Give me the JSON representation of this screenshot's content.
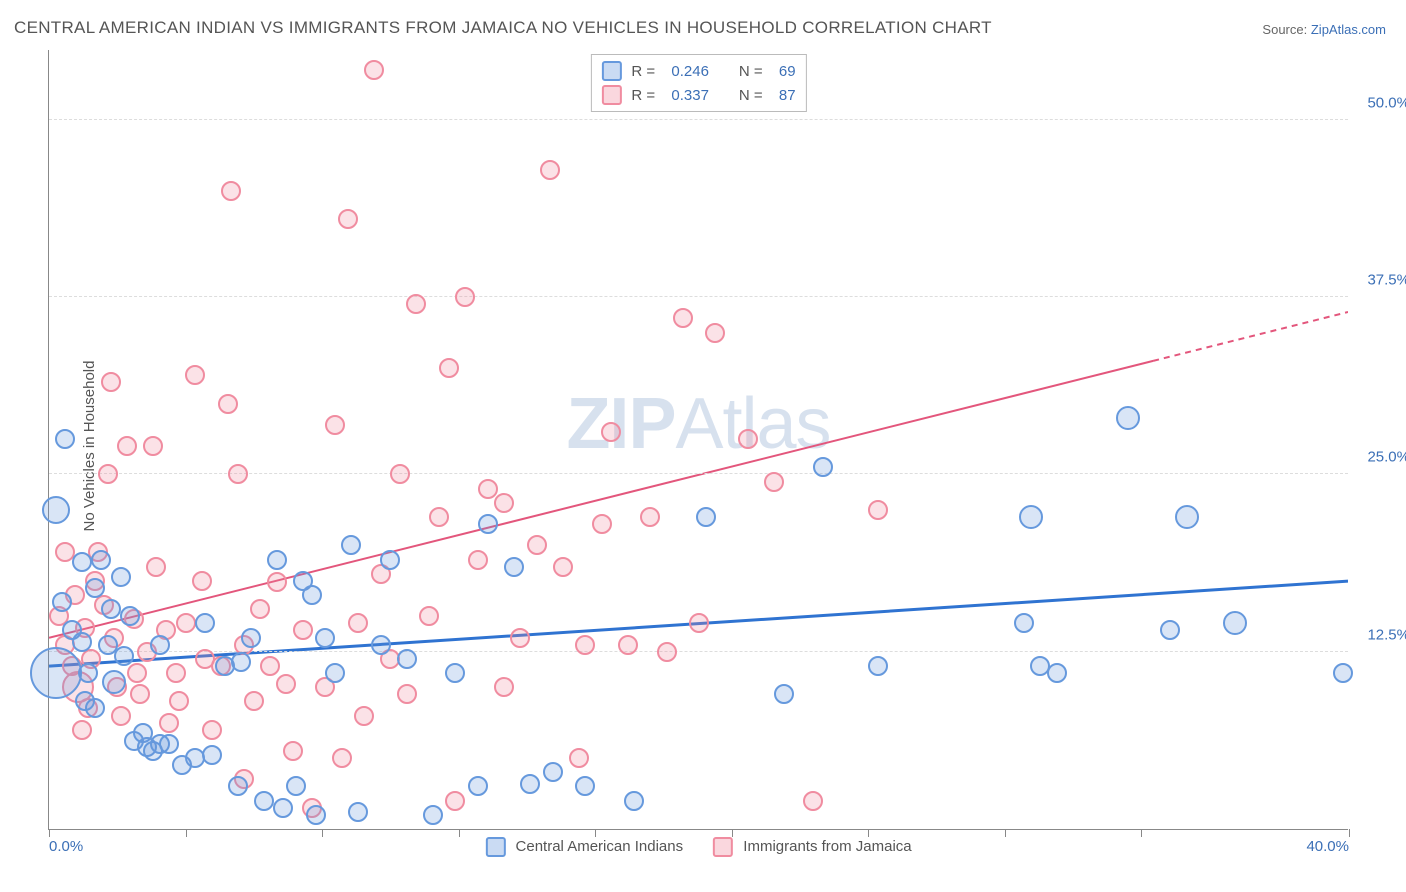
{
  "title": "CENTRAL AMERICAN INDIAN VS IMMIGRANTS FROM JAMAICA NO VEHICLES IN HOUSEHOLD CORRELATION CHART",
  "source_label": "Source:",
  "source_name": "ZipAtlas.com",
  "ylabel": "No Vehicles in Household",
  "watermark_a": "ZIP",
  "watermark_b": "Atlas",
  "chart": {
    "type": "scatter",
    "background_color": "#ffffff",
    "grid_color": "#dddddd",
    "axis_color": "#888888",
    "tick_label_color": "#3b6fb6",
    "label_color": "#555555",
    "title_fontsize": 17,
    "label_fontsize": 15,
    "xlim": [
      0,
      40
    ],
    "ylim": [
      0,
      55
    ],
    "xticks": [
      0,
      4.2,
      8.4,
      12.6,
      16.8,
      21.0,
      25.2,
      29.4,
      33.6,
      40
    ],
    "xtick_labels": {
      "0": "0.0%",
      "40": "40.0%"
    },
    "yticks": [
      12.5,
      25.0,
      37.5,
      50.0
    ],
    "ytick_labels": [
      "12.5%",
      "25.0%",
      "37.5%",
      "50.0%"
    ],
    "series": [
      {
        "name": "Central American Indians",
        "short": "blue",
        "color_fill": "rgba(102,153,221,0.25)",
        "color_stroke": "#6699dd",
        "R": "0.246",
        "N": "69",
        "trend": {
          "x1": 0,
          "y1": 11.5,
          "x2": 40,
          "y2": 17.5,
          "dash_from_x": 40,
          "stroke": "#2f73d1",
          "width": 3
        },
        "points": [
          {
            "x": 0.2,
            "y": 22.5,
            "r": 14
          },
          {
            "x": 0.2,
            "y": 11.0,
            "r": 26
          },
          {
            "x": 0.4,
            "y": 16.0,
            "r": 10
          },
          {
            "x": 0.5,
            "y": 27.5,
            "r": 10
          },
          {
            "x": 0.7,
            "y": 14.0,
            "r": 10
          },
          {
            "x": 1.0,
            "y": 18.8,
            "r": 10
          },
          {
            "x": 1.0,
            "y": 13.2,
            "r": 10
          },
          {
            "x": 1.2,
            "y": 11.0,
            "r": 10
          },
          {
            "x": 1.4,
            "y": 17.0,
            "r": 10
          },
          {
            "x": 1.4,
            "y": 8.5,
            "r": 10
          },
          {
            "x": 1.6,
            "y": 19.0,
            "r": 10
          },
          {
            "x": 1.8,
            "y": 13.0,
            "r": 10
          },
          {
            "x": 1.9,
            "y": 15.5,
            "r": 10
          },
          {
            "x": 2.0,
            "y": 10.4,
            "r": 12
          },
          {
            "x": 2.2,
            "y": 17.8,
            "r": 10
          },
          {
            "x": 2.3,
            "y": 12.2,
            "r": 10
          },
          {
            "x": 2.5,
            "y": 15.0,
            "r": 10
          },
          {
            "x": 2.6,
            "y": 6.2,
            "r": 10
          },
          {
            "x": 2.9,
            "y": 6.8,
            "r": 10
          },
          {
            "x": 3.0,
            "y": 5.8,
            "r": 10
          },
          {
            "x": 3.2,
            "y": 5.5,
            "r": 10
          },
          {
            "x": 3.4,
            "y": 6.0,
            "r": 10
          },
          {
            "x": 3.4,
            "y": 13.0,
            "r": 10
          },
          {
            "x": 3.7,
            "y": 6.0,
            "r": 10
          },
          {
            "x": 4.1,
            "y": 4.5,
            "r": 10
          },
          {
            "x": 4.5,
            "y": 5.0,
            "r": 10
          },
          {
            "x": 4.8,
            "y": 14.5,
            "r": 10
          },
          {
            "x": 5.0,
            "y": 5.2,
            "r": 10
          },
          {
            "x": 5.4,
            "y": 11.5,
            "r": 10
          },
          {
            "x": 5.8,
            "y": 3.0,
            "r": 10
          },
          {
            "x": 5.9,
            "y": 11.8,
            "r": 10
          },
          {
            "x": 6.2,
            "y": 13.5,
            "r": 10
          },
          {
            "x": 6.6,
            "y": 2.0,
            "r": 10
          },
          {
            "x": 7.0,
            "y": 19.0,
            "r": 10
          },
          {
            "x": 7.2,
            "y": 1.5,
            "r": 10
          },
          {
            "x": 7.6,
            "y": 3.0,
            "r": 10
          },
          {
            "x": 7.8,
            "y": 17.5,
            "r": 10
          },
          {
            "x": 8.1,
            "y": 16.5,
            "r": 10
          },
          {
            "x": 8.2,
            "y": 1.0,
            "r": 10
          },
          {
            "x": 8.5,
            "y": 13.5,
            "r": 10
          },
          {
            "x": 8.8,
            "y": 11.0,
            "r": 10
          },
          {
            "x": 9.3,
            "y": 20.0,
            "r": 10
          },
          {
            "x": 9.5,
            "y": 1.2,
            "r": 10
          },
          {
            "x": 10.2,
            "y": 13.0,
            "r": 10
          },
          {
            "x": 10.5,
            "y": 19.0,
            "r": 10
          },
          {
            "x": 11.0,
            "y": 12.0,
            "r": 10
          },
          {
            "x": 11.8,
            "y": 1.0,
            "r": 10
          },
          {
            "x": 12.5,
            "y": 11.0,
            "r": 10
          },
          {
            "x": 13.2,
            "y": 3.0,
            "r": 10
          },
          {
            "x": 13.5,
            "y": 21.5,
            "r": 10
          },
          {
            "x": 14.3,
            "y": 18.5,
            "r": 10
          },
          {
            "x": 14.8,
            "y": 3.2,
            "r": 10
          },
          {
            "x": 15.5,
            "y": 4.0,
            "r": 10
          },
          {
            "x": 16.5,
            "y": 3.0,
            "r": 10
          },
          {
            "x": 18.0,
            "y": 2.0,
            "r": 10
          },
          {
            "x": 20.2,
            "y": 22.0,
            "r": 10
          },
          {
            "x": 22.6,
            "y": 9.5,
            "r": 10
          },
          {
            "x": 23.8,
            "y": 25.5,
            "r": 10
          },
          {
            "x": 25.5,
            "y": 11.5,
            "r": 10
          },
          {
            "x": 30.0,
            "y": 14.5,
            "r": 10
          },
          {
            "x": 30.2,
            "y": 22.0,
            "r": 12
          },
          {
            "x": 30.5,
            "y": 11.5,
            "r": 10
          },
          {
            "x": 31.0,
            "y": 11.0,
            "r": 10
          },
          {
            "x": 33.2,
            "y": 29.0,
            "r": 12
          },
          {
            "x": 34.5,
            "y": 14.0,
            "r": 10
          },
          {
            "x": 35.0,
            "y": 22.0,
            "r": 12
          },
          {
            "x": 36.5,
            "y": 14.5,
            "r": 12
          },
          {
            "x": 39.8,
            "y": 11.0,
            "r": 10
          },
          {
            "x": 1.1,
            "y": 9.0,
            "r": 10
          }
        ]
      },
      {
        "name": "Immigrants from Jamaica",
        "short": "pink",
        "color_fill": "rgba(240,140,160,0.25)",
        "color_stroke": "#f08ca0",
        "R": "0.337",
        "N": "87",
        "trend": {
          "x1": 0,
          "y1": 13.5,
          "x2": 40,
          "y2": 36.5,
          "dash_from_x": 34,
          "stroke": "#e3567c",
          "width": 2
        },
        "points": [
          {
            "x": 0.3,
            "y": 15.0,
            "r": 10
          },
          {
            "x": 0.5,
            "y": 19.5,
            "r": 10
          },
          {
            "x": 0.5,
            "y": 13.0,
            "r": 10
          },
          {
            "x": 0.7,
            "y": 11.5,
            "r": 10
          },
          {
            "x": 0.8,
            "y": 16.5,
            "r": 10
          },
          {
            "x": 0.9,
            "y": 10.0,
            "r": 16
          },
          {
            "x": 1.1,
            "y": 14.2,
            "r": 10
          },
          {
            "x": 1.2,
            "y": 8.5,
            "r": 10
          },
          {
            "x": 1.3,
            "y": 12.0,
            "r": 10
          },
          {
            "x": 1.4,
            "y": 17.5,
            "r": 10
          },
          {
            "x": 1.5,
            "y": 19.5,
            "r": 10
          },
          {
            "x": 1.7,
            "y": 15.8,
            "r": 10
          },
          {
            "x": 1.8,
            "y": 25.0,
            "r": 10
          },
          {
            "x": 1.9,
            "y": 31.5,
            "r": 10
          },
          {
            "x": 2.0,
            "y": 13.5,
            "r": 10
          },
          {
            "x": 2.1,
            "y": 10.0,
            "r": 10
          },
          {
            "x": 2.2,
            "y": 8.0,
            "r": 10
          },
          {
            "x": 2.4,
            "y": 27.0,
            "r": 10
          },
          {
            "x": 2.6,
            "y": 14.8,
            "r": 10
          },
          {
            "x": 2.7,
            "y": 11.0,
            "r": 10
          },
          {
            "x": 3.0,
            "y": 12.5,
            "r": 10
          },
          {
            "x": 3.2,
            "y": 27.0,
            "r": 10
          },
          {
            "x": 3.3,
            "y": 18.5,
            "r": 10
          },
          {
            "x": 3.6,
            "y": 14.0,
            "r": 10
          },
          {
            "x": 3.9,
            "y": 11.0,
            "r": 10
          },
          {
            "x": 4.0,
            "y": 9.0,
            "r": 10
          },
          {
            "x": 4.2,
            "y": 14.5,
            "r": 10
          },
          {
            "x": 4.5,
            "y": 32.0,
            "r": 10
          },
          {
            "x": 4.7,
            "y": 17.5,
            "r": 10
          },
          {
            "x": 5.0,
            "y": 7.0,
            "r": 10
          },
          {
            "x": 5.3,
            "y": 11.5,
            "r": 10
          },
          {
            "x": 5.5,
            "y": 30.0,
            "r": 10
          },
          {
            "x": 5.6,
            "y": 45.0,
            "r": 10
          },
          {
            "x": 5.8,
            "y": 25.0,
            "r": 10
          },
          {
            "x": 6.0,
            "y": 13.0,
            "r": 10
          },
          {
            "x": 6.3,
            "y": 9.0,
            "r": 10
          },
          {
            "x": 6.5,
            "y": 15.5,
            "r": 10
          },
          {
            "x": 6.8,
            "y": 11.5,
            "r": 10
          },
          {
            "x": 7.0,
            "y": 17.4,
            "r": 10
          },
          {
            "x": 7.3,
            "y": 10.2,
            "r": 10
          },
          {
            "x": 7.5,
            "y": 5.5,
            "r": 10
          },
          {
            "x": 7.8,
            "y": 14.0,
            "r": 10
          },
          {
            "x": 8.1,
            "y": 1.5,
            "r": 10
          },
          {
            "x": 8.5,
            "y": 10.0,
            "r": 10
          },
          {
            "x": 8.8,
            "y": 28.5,
            "r": 10
          },
          {
            "x": 9.2,
            "y": 43.0,
            "r": 10
          },
          {
            "x": 9.5,
            "y": 14.5,
            "r": 10
          },
          {
            "x": 9.7,
            "y": 8.0,
            "r": 10
          },
          {
            "x": 10.0,
            "y": 53.5,
            "r": 10
          },
          {
            "x": 10.2,
            "y": 18.0,
            "r": 10
          },
          {
            "x": 10.5,
            "y": 12.0,
            "r": 10
          },
          {
            "x": 10.8,
            "y": 25.0,
            "r": 10
          },
          {
            "x": 11.0,
            "y": 9.5,
            "r": 10
          },
          {
            "x": 11.3,
            "y": 37.0,
            "r": 10
          },
          {
            "x": 11.7,
            "y": 15.0,
            "r": 10
          },
          {
            "x": 12.0,
            "y": 22.0,
            "r": 10
          },
          {
            "x": 12.3,
            "y": 32.5,
            "r": 10
          },
          {
            "x": 12.5,
            "y": 2.0,
            "r": 10
          },
          {
            "x": 12.8,
            "y": 37.5,
            "r": 10
          },
          {
            "x": 13.2,
            "y": 19.0,
            "r": 10
          },
          {
            "x": 13.5,
            "y": 24.0,
            "r": 10
          },
          {
            "x": 14.0,
            "y": 23.0,
            "r": 10
          },
          {
            "x": 14.5,
            "y": 13.5,
            "r": 10
          },
          {
            "x": 15.0,
            "y": 20.0,
            "r": 10
          },
          {
            "x": 15.4,
            "y": 46.5,
            "r": 10
          },
          {
            "x": 15.8,
            "y": 18.5,
            "r": 10
          },
          {
            "x": 16.3,
            "y": 5.0,
            "r": 10
          },
          {
            "x": 16.5,
            "y": 13.0,
            "r": 10
          },
          {
            "x": 17.0,
            "y": 21.5,
            "r": 10
          },
          {
            "x": 17.3,
            "y": 28.0,
            "r": 10
          },
          {
            "x": 17.8,
            "y": 13.0,
            "r": 10
          },
          {
            "x": 18.5,
            "y": 22.0,
            "r": 10
          },
          {
            "x": 19.0,
            "y": 12.5,
            "r": 10
          },
          {
            "x": 19.5,
            "y": 36.0,
            "r": 10
          },
          {
            "x": 20.0,
            "y": 14.5,
            "r": 10
          },
          {
            "x": 20.5,
            "y": 35.0,
            "r": 10
          },
          {
            "x": 21.5,
            "y": 27.5,
            "r": 10
          },
          {
            "x": 22.3,
            "y": 24.5,
            "r": 10
          },
          {
            "x": 23.5,
            "y": 2.0,
            "r": 10
          },
          {
            "x": 25.5,
            "y": 22.5,
            "r": 10
          },
          {
            "x": 4.8,
            "y": 12.0,
            "r": 10
          },
          {
            "x": 1.0,
            "y": 7.0,
            "r": 10
          },
          {
            "x": 3.7,
            "y": 7.5,
            "r": 10
          },
          {
            "x": 2.8,
            "y": 9.5,
            "r": 10
          },
          {
            "x": 6.0,
            "y": 3.5,
            "r": 10
          },
          {
            "x": 9.0,
            "y": 5.0,
            "r": 10
          },
          {
            "x": 14.0,
            "y": 10.0,
            "r": 10
          }
        ]
      }
    ]
  },
  "legend_bottom": [
    {
      "sw": "blue",
      "label": "Central American Indians"
    },
    {
      "sw": "pink",
      "label": "Immigrants from Jamaica"
    }
  ],
  "legend_top_prefix_R": "R =",
  "legend_top_prefix_N": "N ="
}
